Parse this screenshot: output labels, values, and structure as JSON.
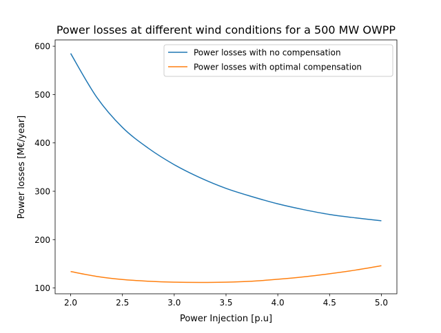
{
  "chart_data": {
    "type": "line",
    "title": "Power losses at different wind conditions for a 500 MW OWPP",
    "xlabel": "Power Injection [p.u]",
    "ylabel": "Power losses [M€/year]",
    "xlim": [
      1.85,
      5.15
    ],
    "ylim": [
      88,
      613
    ],
    "x_ticks": [
      2.0,
      2.5,
      3.0,
      3.5,
      4.0,
      4.5,
      5.0
    ],
    "x_tick_labels": [
      "2.0",
      "2.5",
      "3.0",
      "3.5",
      "4.0",
      "4.5",
      "5.0"
    ],
    "y_ticks": [
      100,
      200,
      300,
      400,
      500,
      600
    ],
    "y_tick_labels": [
      "100",
      "200",
      "300",
      "400",
      "500",
      "600"
    ],
    "grid": false,
    "legend_position": "top-right",
    "x": [
      2.0,
      2.25,
      2.5,
      2.75,
      3.0,
      3.25,
      3.5,
      3.75,
      4.0,
      4.25,
      4.5,
      4.75,
      5.0
    ],
    "series": [
      {
        "name": "Power losses with no compensation",
        "color": "#1f77b4",
        "values": [
          585,
          495,
          432,
          389,
          355,
          328,
          306,
          289,
          274,
          262,
          252,
          245,
          239
        ]
      },
      {
        "name": "Power losses with optimal compensation",
        "color": "#ff7f0e",
        "values": [
          134,
          124,
          117.5,
          114,
          112,
          111.5,
          112,
          114,
          118,
          123,
          129.5,
          137,
          146
        ]
      }
    ]
  }
}
